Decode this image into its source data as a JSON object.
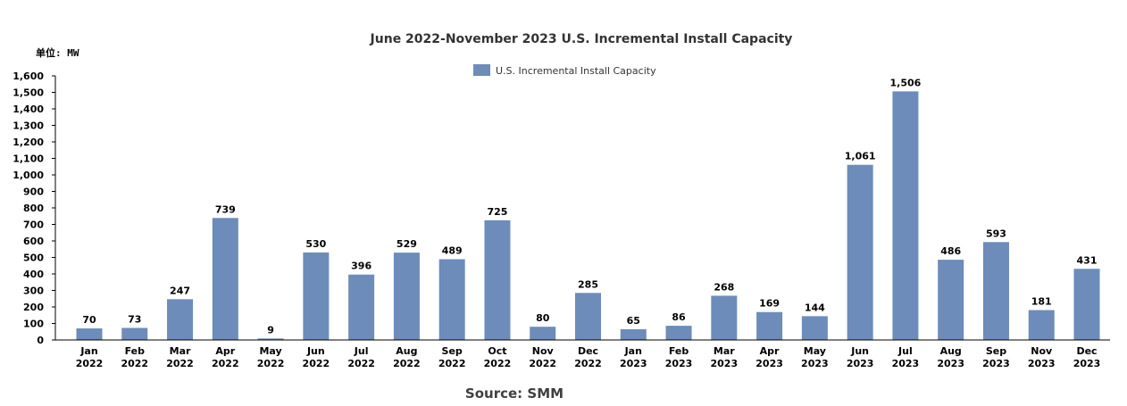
{
  "chart_data": {
    "type": "bar",
    "title": "June 2022-November 2023 U.S. Incremental Install Capacity",
    "unit_label": "单位: MW",
    "xlabel": "",
    "ylabel": "",
    "ylim": [
      0,
      1600
    ],
    "y_ticks": [
      0,
      100,
      200,
      300,
      400,
      500,
      600,
      700,
      800,
      900,
      1000,
      1100,
      1200,
      1300,
      1400,
      1500,
      1600
    ],
    "y_tick_labels": [
      "0",
      "100",
      "200",
      "300",
      "400",
      "500",
      "600",
      "700",
      "800",
      "900",
      "1,000",
      "1,100",
      "1,200",
      "1,300",
      "1,400",
      "1,500",
      "1,600"
    ],
    "grid": false,
    "legend": {
      "position": "top-center",
      "entries": [
        "U.S. Incremental Install Capacity"
      ]
    },
    "categories": [
      [
        "Jan",
        "2022"
      ],
      [
        "Feb",
        "2022"
      ],
      [
        "Mar",
        "2022"
      ],
      [
        "Apr",
        "2022"
      ],
      [
        "May",
        "2022"
      ],
      [
        "Jun",
        "2022"
      ],
      [
        "Jul",
        "2022"
      ],
      [
        "Aug",
        "2022"
      ],
      [
        "Sep",
        "2022"
      ],
      [
        "Oct",
        "2022"
      ],
      [
        "Nov",
        "2022"
      ],
      [
        "Dec",
        "2022"
      ],
      [
        "Jan",
        "2023"
      ],
      [
        "Feb",
        "2023"
      ],
      [
        "Mar",
        "2023"
      ],
      [
        "Apr",
        "2023"
      ],
      [
        "May",
        "2023"
      ],
      [
        "Jun",
        "2023"
      ],
      [
        "Jul",
        "2023"
      ],
      [
        "Aug",
        "2023"
      ],
      [
        "Sep",
        "2023"
      ],
      [
        "Nov",
        "2023"
      ],
      [
        "Dec",
        "2023"
      ]
    ],
    "series": [
      {
        "name": "U.S. Incremental Install Capacity",
        "color": "#6d8cb9",
        "values": [
          70,
          73,
          247,
          739,
          9,
          530,
          396,
          529,
          489,
          725,
          80,
          285,
          65,
          86,
          268,
          169,
          144,
          1061,
          1506,
          486,
          593,
          181,
          431
        ],
        "data_labels": [
          "70",
          "73",
          "247",
          "739",
          "9",
          "530",
          "396",
          "529",
          "489",
          "725",
          "80",
          "285",
          "65",
          "86",
          "268",
          "169",
          "144",
          "1,061",
          "1,506",
          "486",
          "593",
          "181",
          "431"
        ]
      }
    ],
    "source": "Source: SMM"
  }
}
